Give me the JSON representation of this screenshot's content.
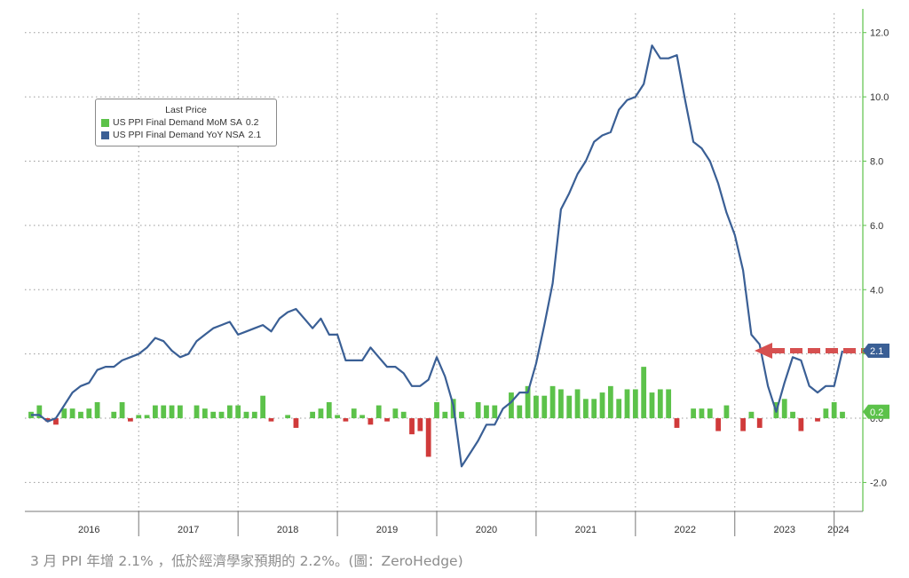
{
  "chart_data": {
    "type": "bar",
    "legend": {
      "title": "Last Price",
      "placement": "top-left",
      "items": [
        {
          "label": "US PPI Final Demand MoM SA",
          "value": "0.2",
          "color": "#5cc24a"
        },
        {
          "label": "US PPI Final Demand YoY NSA",
          "value": "2.1",
          "color": "#3a5f95"
        }
      ]
    },
    "y_axis": {
      "side": "right",
      "ylim": [
        -2.9,
        12.6
      ],
      "ticks": [
        {
          "value": 12,
          "label": "12.0"
        },
        {
          "value": 10,
          "label": "10.0"
        },
        {
          "value": 8,
          "label": "8.0"
        },
        {
          "value": 6,
          "label": "6.0"
        },
        {
          "value": 4,
          "label": "4.0"
        },
        {
          "value": 2,
          "label": "2.0"
        },
        {
          "value": 0,
          "label": "0.0"
        },
        {
          "value": -2,
          "label": "-2.0"
        }
      ],
      "value_tags": [
        {
          "label": "2.1",
          "value": 2.1,
          "color": "#3a5f95"
        },
        {
          "label": "0.2",
          "value": 0.2,
          "color": "#5cc24a"
        }
      ]
    },
    "x_axis": {
      "start": "2015-12",
      "years": [
        "2016",
        "2017",
        "2018",
        "2019",
        "2020",
        "2021",
        "2022",
        "2023",
        "2024"
      ]
    },
    "grid": true,
    "series": [
      {
        "name": "US PPI Final Demand MoM SA",
        "type": "bar",
        "color_positive": "#5cc24a",
        "color_negative": "#d03a3a",
        "values": [
          0.2,
          0.4,
          -0.1,
          -0.2,
          0.3,
          0.3,
          0.2,
          0.3,
          0.5,
          0.0,
          0.2,
          0.5,
          -0.1,
          0.1,
          0.1,
          0.4,
          0.4,
          0.4,
          0.4,
          0.0,
          0.4,
          0.3,
          0.2,
          0.2,
          0.4,
          0.4,
          0.2,
          0.2,
          0.7,
          -0.1,
          0.0,
          0.1,
          -0.3,
          0.0,
          0.2,
          0.3,
          0.5,
          0.1,
          -0.1,
          0.3,
          0.1,
          -0.2,
          0.4,
          -0.1,
          0.3,
          0.2,
          -0.5,
          -0.4,
          -1.2,
          0.5,
          0.2,
          0.6,
          0.2,
          0.0,
          0.5,
          0.4,
          0.4,
          0.0,
          0.8,
          0.4,
          1.0,
          0.7,
          0.7,
          1.0,
          0.9,
          0.7,
          0.9,
          0.6,
          0.6,
          0.8,
          1.0,
          0.6,
          0.9,
          0.9,
          1.6,
          0.8,
          0.9,
          0.9,
          -0.3,
          0.0,
          0.3,
          0.3,
          0.3,
          -0.4,
          0.4,
          0.0,
          -0.4,
          0.2,
          -0.3,
          0.0,
          0.5,
          0.6,
          0.2,
          -0.4,
          0.0,
          -0.1,
          0.3,
          0.5,
          0.2
        ]
      },
      {
        "name": "US PPI Final Demand YoY NSA",
        "type": "line",
        "color": "#3a5f95",
        "values": [
          0.1,
          0.1,
          -0.1,
          0.0,
          0.4,
          0.8,
          1.0,
          1.1,
          1.5,
          1.6,
          1.6,
          1.8,
          1.9,
          2.0,
          2.2,
          2.5,
          2.4,
          2.1,
          1.9,
          2.0,
          2.4,
          2.6,
          2.8,
          2.9,
          3.0,
          2.6,
          2.7,
          2.8,
          2.9,
          2.7,
          3.1,
          3.3,
          3.4,
          3.1,
          2.8,
          3.1,
          2.6,
          2.6,
          1.8,
          1.8,
          1.8,
          2.2,
          1.9,
          1.6,
          1.6,
          1.4,
          1.0,
          1.0,
          1.2,
          1.9,
          1.3,
          0.4,
          -1.5,
          -1.1,
          -0.7,
          -0.2,
          -0.2,
          0.3,
          0.5,
          0.8,
          0.8,
          1.7,
          2.9,
          4.2,
          6.5,
          7.0,
          7.6,
          8.0,
          8.6,
          8.8,
          8.9,
          9.6,
          9.9,
          10.0,
          10.4,
          11.6,
          11.2,
          11.2,
          11.3,
          9.9,
          8.6,
          8.4,
          8.0,
          7.3,
          6.4,
          5.7,
          4.6,
          2.6,
          2.3,
          1.0,
          0.2,
          1.1,
          1.9,
          1.8,
          1.0,
          0.8,
          1.0,
          1.0,
          2.1
        ]
      }
    ],
    "annotation": "red dashed arrow pointing left at 2.1 level",
    "annotation_color": "#d65050"
  },
  "caption": "3 月 PPI 年增 2.1% ，低於經濟學家預期的 2.2%。(圖：ZeroHedge)"
}
